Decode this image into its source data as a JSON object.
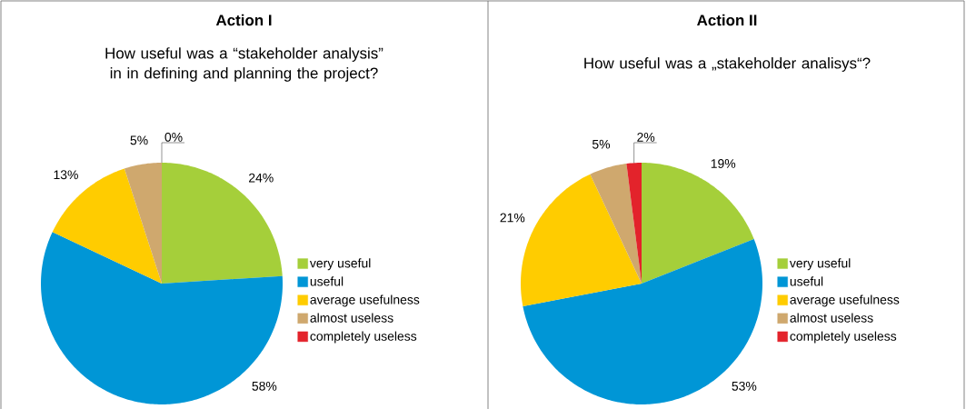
{
  "chart_data": [
    {
      "type": "pie",
      "title": "Action I",
      "subtitle": "How useful was a “stakeholder analysis” in  in defining and planning the project?",
      "categories": [
        "very useful",
        "useful",
        "average usefulness",
        "almost useless",
        "completely useless"
      ],
      "values": [
        24,
        58,
        13,
        5,
        0
      ],
      "value_labels": [
        "24%",
        "58%",
        "13%",
        "5%",
        "0%"
      ],
      "colors": [
        "#a5cf3a",
        "#0096d6",
        "#ffcc00",
        "#cfa86e",
        "#e3232b"
      ],
      "legend": "right"
    },
    {
      "type": "pie",
      "title": "Action II",
      "subtitle": "How useful was a „stakeholder analisys“?",
      "categories": [
        "very useful",
        "useful",
        "average usefulness",
        "almost useless",
        "completely useless"
      ],
      "values": [
        19,
        53,
        21,
        5,
        2
      ],
      "value_labels": [
        "19%",
        "53%",
        "21%",
        "5%",
        "2%"
      ],
      "colors": [
        "#a5cf3a",
        "#0096d6",
        "#ffcc00",
        "#cfa86e",
        "#e3232b"
      ],
      "legend": "right"
    }
  ]
}
